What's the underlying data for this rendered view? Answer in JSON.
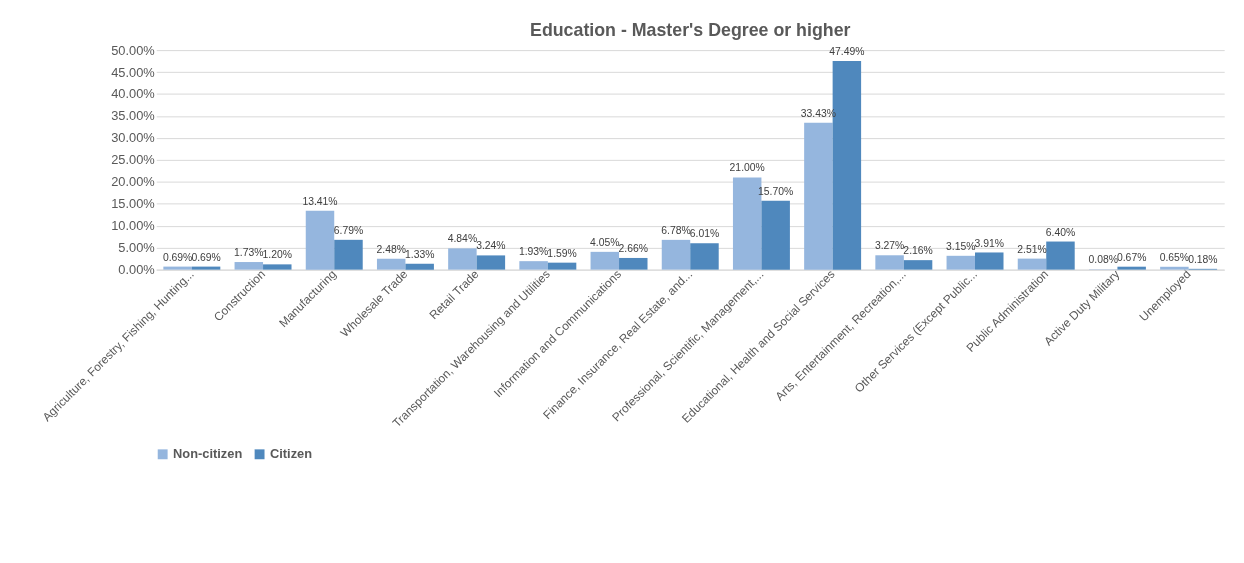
{
  "chart_data": {
    "type": "bar",
    "title": "Education - Master's Degree or higher",
    "categories": [
      "Agriculture, Forestry, Fishing, Hunting...",
      "Construction",
      "Manufacturing",
      "Wholesale Trade",
      "Retail Trade",
      "Transportation, Warehousing and Utilities",
      "Information and Communications",
      "Finance, Insurance, Real Estate, and...",
      "Professional, Scientific, Management,...",
      "Educational, Health and Social Services",
      "Arts, Entertainment, Recreation,...",
      "Other Services (Except Public...",
      "Public Administration",
      "Active Duty Military",
      "Unemployed"
    ],
    "series": [
      {
        "name": "Non-citizen",
        "color": "#95b6de",
        "values": [
          0.69,
          1.73,
          13.41,
          2.48,
          4.84,
          1.93,
          4.05,
          6.78,
          21.0,
          33.43,
          3.27,
          3.15,
          2.51,
          0.08,
          0.65
        ],
        "value_labels": [
          "0.69%",
          "1.73%",
          "13.41%",
          "2.48%",
          "4.84%",
          "1.93%",
          "4.05%",
          "6.78%",
          "21.00%",
          "33.43%",
          "3.27%",
          "3.15%",
          "2.51%",
          "0.08%",
          "0.65%"
        ]
      },
      {
        "name": "Citizen",
        "color": "#4f88bd",
        "values": [
          0.69,
          1.2,
          6.79,
          1.33,
          3.24,
          1.59,
          2.66,
          6.01,
          15.7,
          47.49,
          2.16,
          3.91,
          6.4,
          0.67,
          0.18
        ],
        "value_labels": [
          "0.69%",
          "1.20%",
          "6.79%",
          "1.33%",
          "3.24%",
          "1.59%",
          "2.66%",
          "6.01%",
          "15.70%",
          "47.49%",
          "2.16%",
          "3.91%",
          "6.40%",
          "0.67%",
          "0.18%"
        ]
      }
    ],
    "ylim": [
      0,
      50
    ],
    "yticks": [
      {
        "value": 0,
        "label": "0.00%"
      },
      {
        "value": 5,
        "label": "5.00%"
      },
      {
        "value": 10,
        "label": "10.00%"
      },
      {
        "value": 15,
        "label": "15.00%"
      },
      {
        "value": 20,
        "label": "20.00%"
      },
      {
        "value": 25,
        "label": "25.00%"
      },
      {
        "value": 30,
        "label": "30.00%"
      },
      {
        "value": 35,
        "label": "35.00%"
      },
      {
        "value": 40,
        "label": "40.00%"
      },
      {
        "value": 45,
        "label": "45.00%"
      },
      {
        "value": 50,
        "label": "50.00%"
      }
    ],
    "grid": "y",
    "legend": "bottom"
  }
}
